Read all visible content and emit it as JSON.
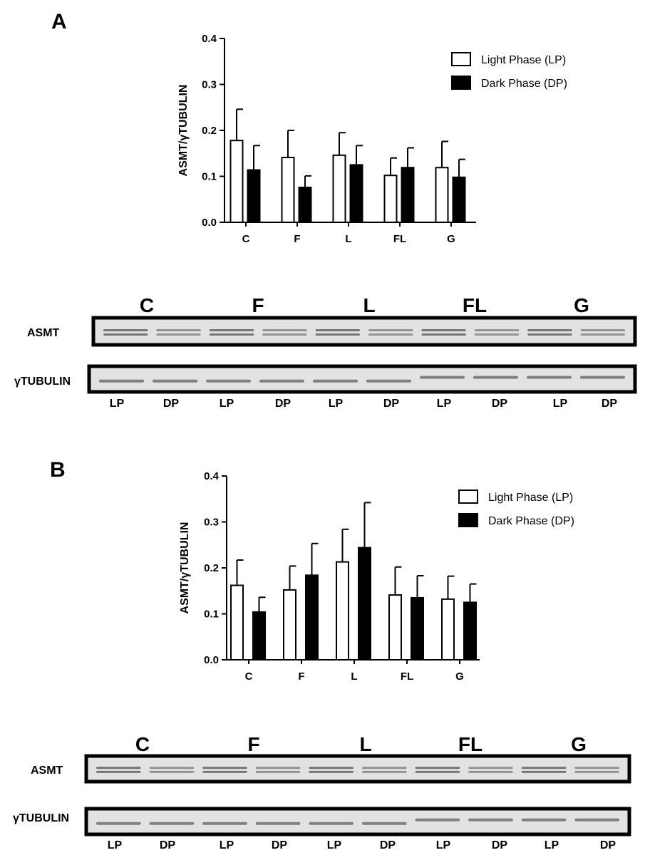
{
  "chart_data": [
    {
      "panel": "A",
      "type": "bar",
      "title": "",
      "xlabel": "",
      "ylabel": "ASMT/γTUBULIN",
      "ylim": [
        0,
        0.4
      ],
      "yticks": [
        "0.0",
        "0.1",
        "0.2",
        "0.3",
        "0.4"
      ],
      "categories": [
        "C",
        "F",
        "L",
        "FL",
        "G"
      ],
      "grid": false,
      "legend": "top-right",
      "series": [
        {
          "name": "Light Phase (LP)",
          "fill": "#ffffff",
          "values": [
            0.178,
            0.141,
            0.146,
            0.102,
            0.119
          ],
          "errors": [
            0.068,
            0.059,
            0.049,
            0.038,
            0.057
          ]
        },
        {
          "name": "Dark Phase (DP)",
          "fill": "#000000",
          "values": [
            0.114,
            0.076,
            0.125,
            0.119,
            0.098
          ],
          "errors": [
            0.053,
            0.025,
            0.042,
            0.043,
            0.039
          ]
        }
      ]
    },
    {
      "panel": "B",
      "type": "bar",
      "title": "",
      "xlabel": "",
      "ylabel": "ASMT/γTUBULIN",
      "ylim": [
        0,
        0.4
      ],
      "yticks": [
        "0.0",
        "0.1",
        "0.2",
        "0.3",
        "0.4"
      ],
      "categories": [
        "C",
        "F",
        "L",
        "FL",
        "G"
      ],
      "grid": false,
      "legend": "top-right",
      "series": [
        {
          "name": "Light Phase (LP)",
          "fill": "#ffffff",
          "values": [
            0.162,
            0.152,
            0.213,
            0.141,
            0.132
          ],
          "errors": [
            0.055,
            0.052,
            0.071,
            0.061,
            0.05
          ]
        },
        {
          "name": "Dark Phase (DP)",
          "fill": "#000000",
          "values": [
            0.104,
            0.184,
            0.244,
            0.135,
            0.125
          ],
          "errors": [
            0.032,
            0.069,
            0.098,
            0.048,
            0.04
          ]
        }
      ]
    }
  ],
  "blots": [
    {
      "panel": "A",
      "groups": [
        "C",
        "F",
        "L",
        "FL",
        "G"
      ],
      "rows": [
        "ASMT",
        "γTUBULIN"
      ],
      "lanes": [
        "LP",
        "DP",
        "LP",
        "DP",
        "LP",
        "DP",
        "LP",
        "DP",
        "LP",
        "DP"
      ]
    },
    {
      "panel": "B",
      "groups": [
        "C",
        "F",
        "L",
        "FL",
        "G"
      ],
      "rows": [
        "ASMT",
        "γTUBULIN"
      ],
      "lanes": [
        "LP",
        "DP",
        "LP",
        "DP",
        "LP",
        "DP",
        "LP",
        "DP",
        "LP",
        "DP"
      ]
    }
  ]
}
